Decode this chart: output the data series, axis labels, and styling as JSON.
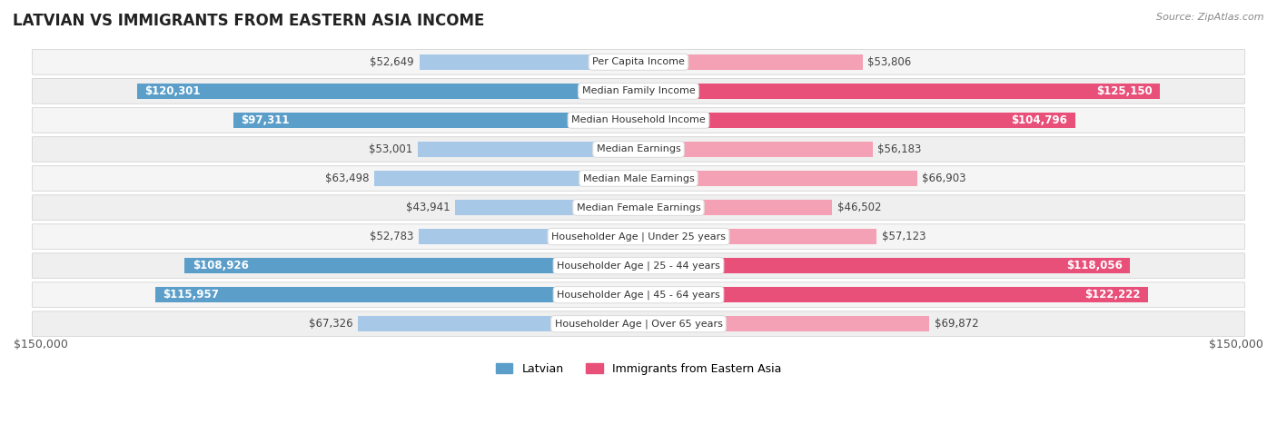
{
  "title": "LATVIAN VS IMMIGRANTS FROM EASTERN ASIA INCOME",
  "source": "Source: ZipAtlas.com",
  "categories": [
    "Per Capita Income",
    "Median Family Income",
    "Median Household Income",
    "Median Earnings",
    "Median Male Earnings",
    "Median Female Earnings",
    "Householder Age | Under 25 years",
    "Householder Age | 25 - 44 years",
    "Householder Age | 45 - 64 years",
    "Householder Age | Over 65 years"
  ],
  "latvian_values": [
    52649,
    120301,
    97311,
    53001,
    63498,
    43941,
    52783,
    108926,
    115957,
    67326
  ],
  "immigrant_values": [
    53806,
    125150,
    104796,
    56183,
    66903,
    46502,
    57123,
    118056,
    122222,
    69872
  ],
  "latvian_color_light": "#a8c8e8",
  "latvian_color_dark": "#5b9ec9",
  "immigrant_color_light": "#f4a0b5",
  "immigrant_color_dark": "#e8507a",
  "latvian_label_color_threshold": 80000,
  "immigrant_label_color_threshold": 80000,
  "max_value": 150000,
  "bar_height": 0.55,
  "row_bg_light": "#f5f5f5",
  "row_bg_dark": "#e8e8e8",
  "xlabel_left": "$150,000",
  "xlabel_right": "$150,000",
  "legend_latvian": "Latvian",
  "legend_immigrant": "Immigrants from Eastern Asia"
}
